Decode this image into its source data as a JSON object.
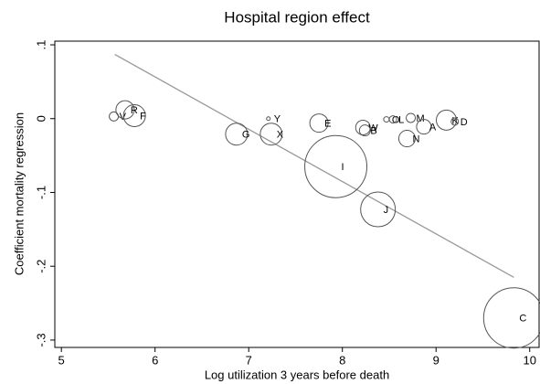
{
  "chart_data": {
    "type": "scatter",
    "title": "Hospital region effect",
    "x_label": "Log utilization 3 years before death",
    "y_label": "Coefficient mortality regression",
    "xlim": [
      4.93,
      10.1
    ],
    "ylim": [
      -0.31,
      0.105
    ],
    "xticks": [
      5,
      6,
      7,
      8,
      9,
      10
    ],
    "yticks": [
      {
        "value": 0.1,
        "label": ".1"
      },
      0,
      {
        "value": -0.1,
        "label": "-.1"
      },
      {
        "value": -0.2,
        "label": "-.2"
      },
      {
        "value": -0.3,
        "label": "-.3"
      }
    ],
    "points": {
      "color": "#555555",
      "labels": [
        "V",
        "R",
        "F",
        "G",
        "Y",
        "X",
        "E",
        "I",
        "W",
        "B",
        "O",
        "L",
        "M",
        "N",
        "A",
        "K",
        "D",
        "J",
        "C"
      ],
      "x": [
        5.56,
        5.68,
        5.78,
        6.87,
        7.21,
        7.24,
        7.75,
        7.93,
        8.22,
        8.24,
        8.47,
        8.54,
        8.73,
        8.69,
        8.87,
        9.11,
        9.2,
        8.38,
        9.83
      ],
      "values": [
        0.003,
        0.012,
        0.004,
        -0.021,
        0.0,
        -0.021,
        -0.006,
        -0.065,
        -0.012,
        -0.016,
        -0.001,
        -0.001,
        0.001,
        -0.027,
        -0.011,
        -0.002,
        -0.004,
        -0.123,
        -0.27
      ],
      "sizes": [
        25,
        100,
        144,
        144,
        4,
        144,
        100,
        1156,
        64,
        36,
        9,
        16,
        25,
        81,
        64,
        121,
        16,
        361,
        1089
      ]
    },
    "fit_line": {
      "color": "#999999",
      "x": [
        5.57,
        9.83
      ],
      "values": [
        0.087,
        -0.215
      ]
    }
  }
}
